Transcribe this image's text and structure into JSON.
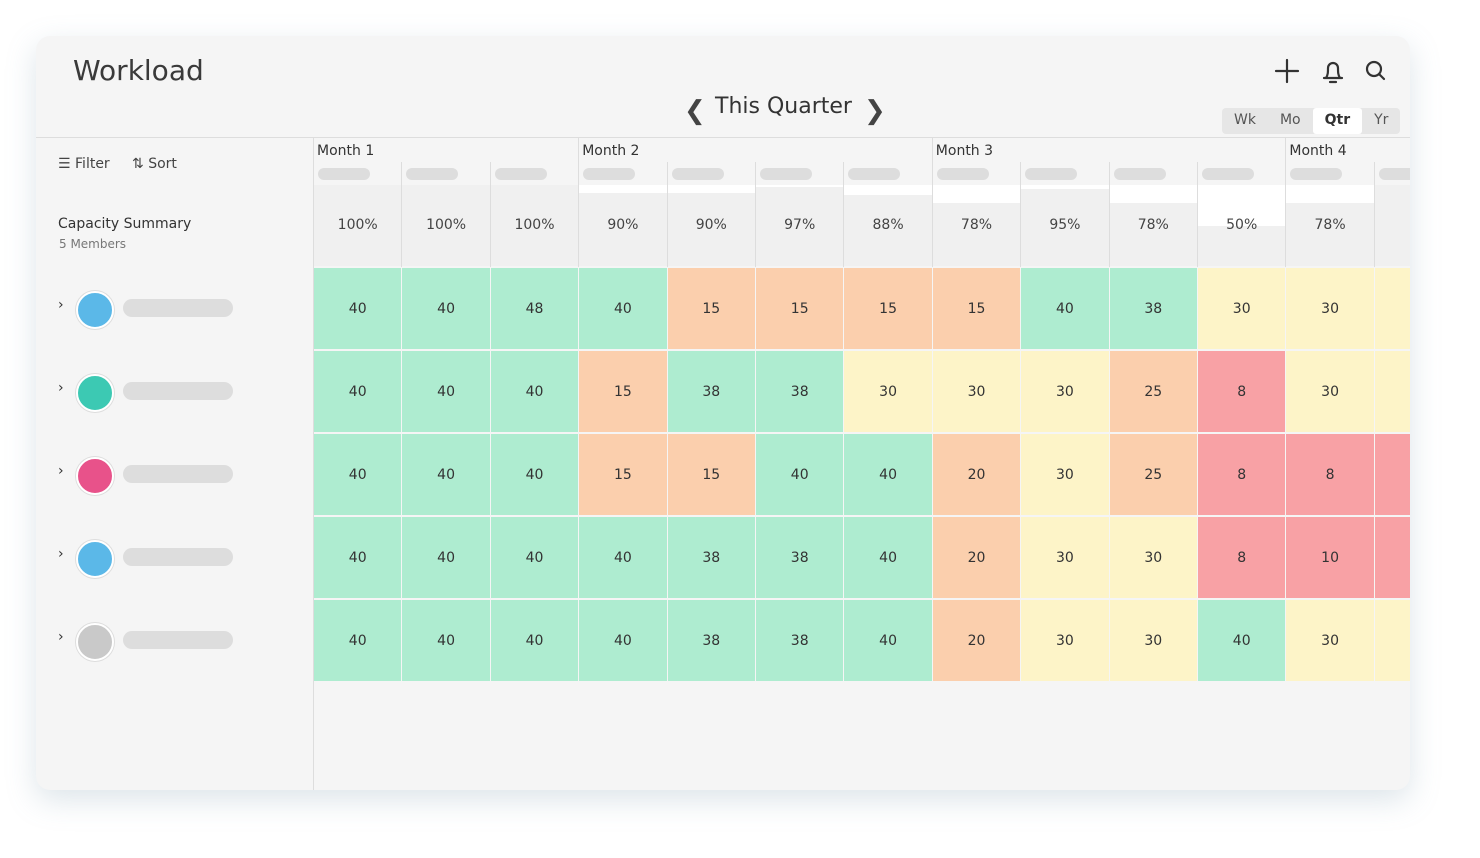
{
  "header": {
    "title": "Workload",
    "period": "This Quarter",
    "views": [
      "Wk",
      "Mo",
      "Qtr",
      "Yr"
    ],
    "active_view": "Qtr"
  },
  "toolbar": {
    "filter": "Filter",
    "sort": "Sort"
  },
  "summary": {
    "title": "Capacity Summary",
    "subtitle": "5 Members"
  },
  "months": [
    "Month 1",
    "Month 2",
    "Month 3",
    "Month 4"
  ],
  "capacity": [
    {
      "value": 100,
      "label": "100%"
    },
    {
      "value": 100,
      "label": "100%"
    },
    {
      "value": 100,
      "label": "100%"
    },
    {
      "value": 90,
      "label": "90%"
    },
    {
      "value": 90,
      "label": "90%"
    },
    {
      "value": 97,
      "label": "97%"
    },
    {
      "value": 88,
      "label": "88%"
    },
    {
      "value": 78,
      "label": "78%"
    },
    {
      "value": 95,
      "label": "95%"
    },
    {
      "value": 78,
      "label": "78%"
    },
    {
      "value": 50,
      "label": "50%"
    },
    {
      "value": 78,
      "label": "78%"
    }
  ],
  "rows": [
    [
      40,
      40,
      48,
      40,
      15,
      15,
      15,
      15,
      40,
      38,
      30,
      30
    ],
    [
      40,
      40,
      40,
      15,
      38,
      38,
      30,
      30,
      30,
      25,
      8,
      30
    ],
    [
      40,
      40,
      40,
      15,
      15,
      40,
      40,
      20,
      30,
      25,
      8,
      8
    ],
    [
      40,
      40,
      40,
      40,
      38,
      38,
      40,
      20,
      30,
      30,
      8,
      10
    ],
    [
      40,
      40,
      40,
      40,
      38,
      38,
      40,
      20,
      30,
      30,
      40,
      30
    ]
  ]
}
